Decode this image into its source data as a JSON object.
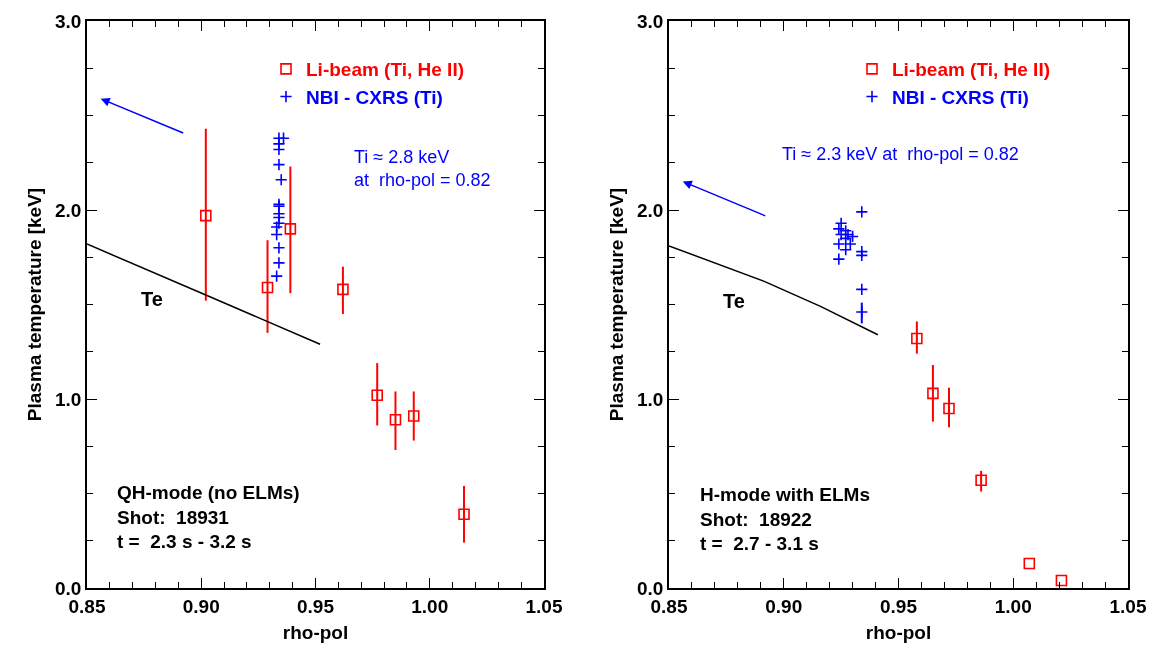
{
  "chart_data": [
    {
      "type": "scatter",
      "xlabel": "rho-pol",
      "ylabel": "Plasma temperature [keV]",
      "xlim": [
        0.85,
        1.05
      ],
      "ylim": [
        0,
        3
      ],
      "xticks": [
        {
          "value": 0.85,
          "label": "0.85"
        },
        {
          "value": 0.9,
          "label": "0.90"
        },
        {
          "value": 0.95,
          "label": "0.95"
        },
        {
          "value": 1.0,
          "label": "1.00"
        },
        {
          "value": 1.05,
          "label": "1.05"
        }
      ],
      "yticks": [
        {
          "value": 0,
          "label": "0.0"
        },
        {
          "value": 1,
          "label": "1.0"
        },
        {
          "value": 2,
          "label": "2.0"
        },
        {
          "value": 3,
          "label": "3.0"
        }
      ],
      "legend": "top right",
      "series": [
        {
          "name": "Li-beam (Ti, He II)",
          "color": "#ff0000",
          "marker": "square",
          "x": [
            0.902,
            0.929,
            0.939,
            0.962,
            0.977,
            0.985,
            0.993,
            1.015
          ],
          "values": [
            1.97,
            1.59,
            1.9,
            1.58,
            1.02,
            0.89,
            0.91,
            0.39
          ],
          "errors": [
            [
              1.52,
              2.43
            ],
            [
              1.35,
              1.84
            ],
            [
              1.56,
              2.23
            ],
            [
              1.45,
              1.7
            ],
            [
              0.86,
              1.19
            ],
            [
              0.73,
              1.04
            ],
            [
              0.78,
              1.04
            ],
            [
              0.24,
              0.54
            ]
          ]
        },
        {
          "name": "NBI - CXRS (Ti)",
          "color": "#0000ff",
          "marker": "cross",
          "x": [
            0.934,
            0.936,
            0.934,
            0.934,
            0.934,
            0.935,
            0.934,
            0.934,
            0.934,
            0.934,
            0.934,
            0.933,
            0.933,
            0.934,
            0.934,
            0.933
          ],
          "values": [
            2.38,
            2.38,
            2.35,
            2.32,
            2.24,
            2.16,
            2.03,
            2.02,
            1.98,
            1.96,
            1.93,
            1.91,
            1.87,
            1.8,
            1.72,
            1.65
          ]
        },
        {
          "name": "Te",
          "type": "line",
          "color": "#000000",
          "marker": "none",
          "x": [
            0.85,
            0.902,
            0.952
          ],
          "values": [
            1.82,
            1.55,
            1.29
          ]
        }
      ],
      "annotations": [
        "Ti ≈ 2.8 keV\nat  rho-pol = 0.82",
        "QH-mode (no ELMs)\nShot:  18931\nt =  2.3 s - 3.2 s"
      ]
    },
    {
      "type": "scatter",
      "xlabel": "rho-pol",
      "ylabel": "Plasma temperature [keV]",
      "xlim": [
        0.85,
        1.05
      ],
      "ylim": [
        0,
        3
      ],
      "xticks": [
        {
          "value": 0.85,
          "label": "0.85"
        },
        {
          "value": 0.9,
          "label": "0.90"
        },
        {
          "value": 0.95,
          "label": "0.95"
        },
        {
          "value": 1.0,
          "label": "1.00"
        },
        {
          "value": 1.05,
          "label": "1.05"
        }
      ],
      "yticks": [
        {
          "value": 0,
          "label": "0.0"
        },
        {
          "value": 1,
          "label": "1.0"
        },
        {
          "value": 2,
          "label": "2.0"
        },
        {
          "value": 3,
          "label": "3.0"
        }
      ],
      "legend": "top right",
      "series": [
        {
          "name": "Li-beam (Ti, He II)",
          "color": "#ff0000",
          "marker": "square",
          "x": [
            0.958,
            0.965,
            0.972,
            0.986,
            1.007,
            1.021
          ],
          "values": [
            1.32,
            1.03,
            0.95,
            0.57,
            0.13,
            0.04
          ],
          "errors": [
            [
              1.24,
              1.41
            ],
            [
              0.88,
              1.18
            ],
            [
              0.85,
              1.06
            ],
            [
              0.51,
              0.62
            ],
            null,
            null
          ]
        },
        {
          "name": "NBI - CXRS (Ti)",
          "color": "#0000ff",
          "marker": "cross",
          "x": [
            0.934,
            0.925,
            0.924,
            0.927,
            0.925,
            0.928,
            0.93,
            0.927,
            0.924,
            0.929,
            0.927,
            0.924,
            0.934,
            0.934,
            0.934,
            0.934
          ],
          "values": [
            1.99,
            1.93,
            1.9,
            1.89,
            1.87,
            1.87,
            1.86,
            1.85,
            1.82,
            1.82,
            1.79,
            1.74,
            1.78,
            1.76,
            1.58,
            1.46
          ],
          "errors": [
            null,
            null,
            null,
            null,
            null,
            null,
            null,
            null,
            null,
            null,
            null,
            null,
            null,
            null,
            null,
            [
              1.4,
              1.51
            ]
          ]
        },
        {
          "name": "Te",
          "type": "line",
          "color": "#000000",
          "marker": "none",
          "x": [
            0.85,
            0.892,
            0.916,
            0.941
          ],
          "values": [
            1.81,
            1.62,
            1.49,
            1.34
          ]
        }
      ],
      "annotations": [
        "Ti ≈ 2.3 keV at  rho-pol = 0.82",
        "H-mode with ELMs\nShot:  18922\nt =  2.7 - 3.1 s"
      ]
    }
  ]
}
